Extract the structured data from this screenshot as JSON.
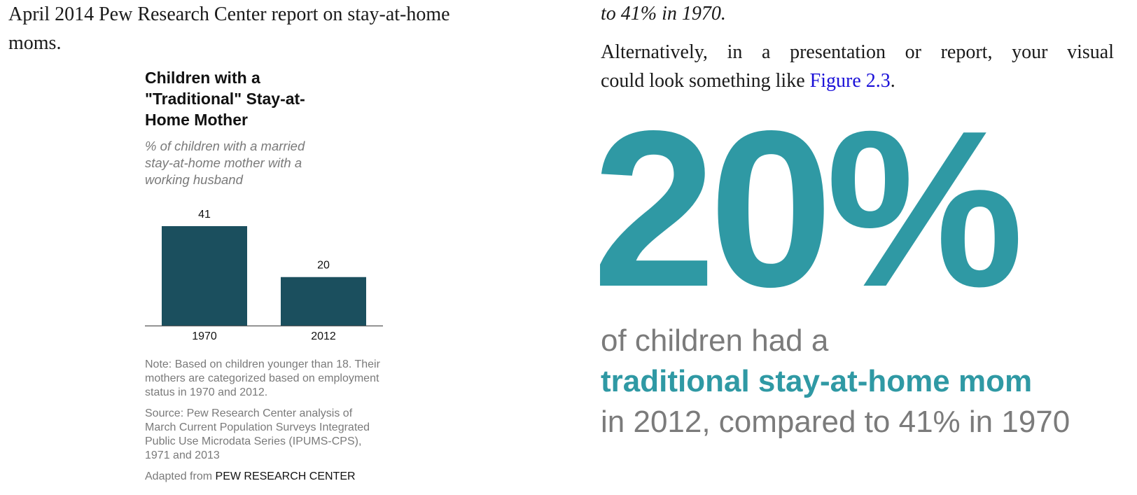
{
  "left_text": {
    "line1": "April 2014 Pew Research Center report on stay-at-home",
    "line2": "moms."
  },
  "figure": {
    "title": "Children with a \"Traditional\" Stay-at-Home Mother",
    "subtitle": "% of children with a married stay-at-home mother with a working husband",
    "note": "Note: Based on children younger than 18. Their mothers are categorized based on employment status in 1970 and 2012.",
    "source": "Source: Pew Research Center analysis of March Current Population Surveys Integrated Public Use Microdata Series (IPUMS-CPS), 1971 and 2013",
    "adapted_prefix": "Adapted from",
    "adapted_source": "PEW RESEARCH CENTER"
  },
  "chart_data": {
    "type": "bar",
    "categories": [
      "1970",
      "2012"
    ],
    "values": [
      41,
      20
    ],
    "title": "Children with a \"Traditional\" Stay-at-Home Mother",
    "subtitle": "% of children with a married stay-at-home mother with a working husband",
    "ylim": [
      0,
      41
    ],
    "grid": false,
    "bar_color": "#1b4f5e"
  },
  "right_text": {
    "italic_line": "to 41% in 1970.",
    "para_line1": "Alternatively, in a presentation or report, your visual",
    "para_line2_prefix": "could look something like",
    "figure_link": "Figure 2.3",
    "para_line2_suffix": "."
  },
  "infographic": {
    "big_stat": "20%",
    "caption_line1": "of children had a",
    "caption_emphasis": "traditional stay-at-home mom",
    "caption_line3": "in 2012, compared to 41% in 1970",
    "accent_color": "#2f99a4",
    "gray_color": "#7b7b7b"
  }
}
